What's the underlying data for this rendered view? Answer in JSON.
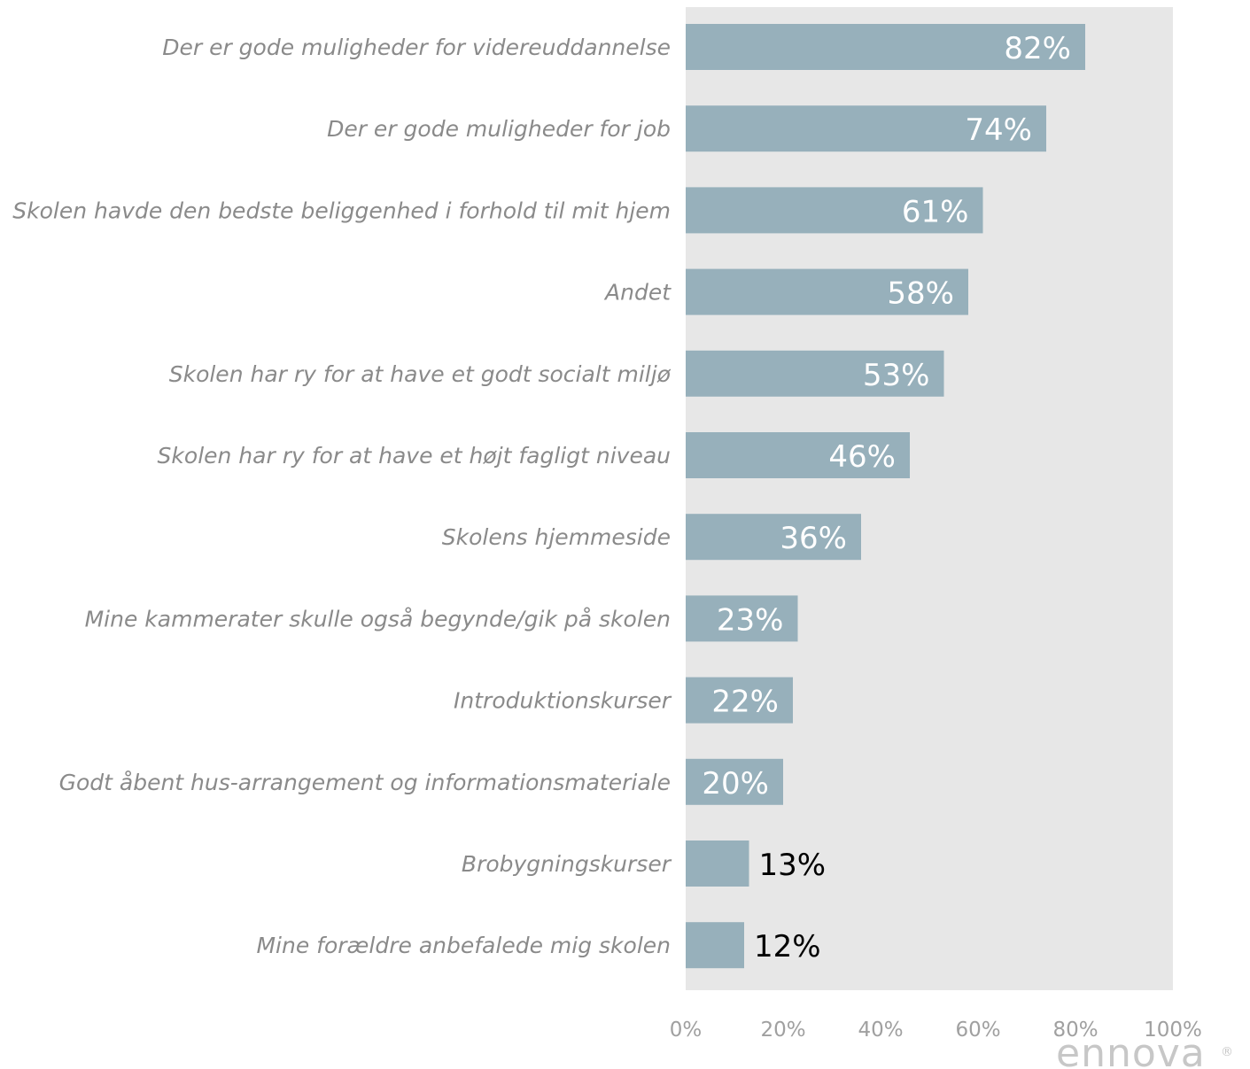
{
  "chart_data": {
    "type": "bar",
    "orientation": "horizontal",
    "categories": [
      "Der er gode muligheder for videreuddannelse",
      "Der er gode muligheder for job",
      "Skolen havde den bedste beliggenhed i forhold til mit hjem",
      "Andet",
      "Skolen har ry for at have et godt socialt miljø",
      "Skolen har ry for at have et højt fagligt niveau",
      "Skolens hjemmeside",
      "Mine kammerater skulle også begynde/gik på skolen",
      "Introduktionskurser",
      "Godt åbent hus-arrangement og informationsmateriale",
      "Brobygningskurser",
      "Mine forældre anbefalede mig skolen"
    ],
    "values": [
      82,
      74,
      61,
      58,
      53,
      46,
      36,
      23,
      22,
      20,
      13,
      12
    ],
    "value_labels": [
      "82%",
      "74%",
      "61%",
      "58%",
      "53%",
      "46%",
      "36%",
      "23%",
      "22%",
      "20%",
      "13%",
      "12%"
    ],
    "xlim": [
      0,
      100
    ],
    "x_ticks": [
      0,
      20,
      40,
      60,
      80,
      100
    ],
    "x_tick_labels": [
      "0%",
      "20%",
      "40%",
      "60%",
      "80%",
      "100%"
    ],
    "grid": false,
    "colors": {
      "bar": "#97b0bb",
      "plot_background": "#e7e7e7",
      "value_label_inside": "#ffffff",
      "value_label_outside": "#000000",
      "category_label": "#8a8a8a",
      "tick_label": "#a0a0a0"
    }
  },
  "branding": {
    "logo_text": "ennova",
    "logo_mark": "®"
  }
}
